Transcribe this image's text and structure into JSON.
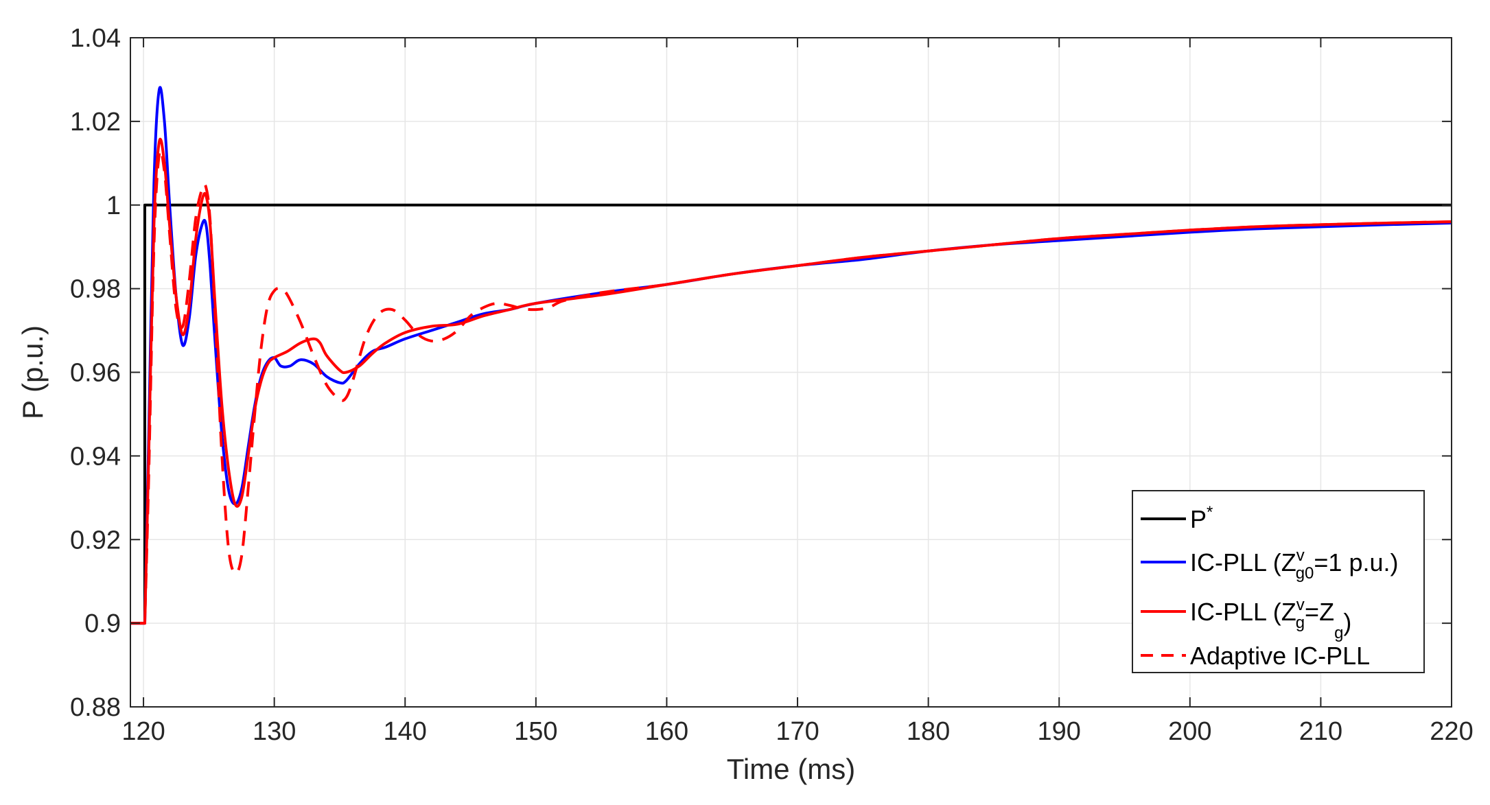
{
  "chart_data": {
    "type": "line",
    "title": "",
    "xlabel": "Time (ms)",
    "ylabel": "P (p.u.)",
    "xlim": [
      119,
      220
    ],
    "ylim": [
      0.88,
      1.04
    ],
    "x_ticks": [
      120,
      130,
      140,
      150,
      160,
      170,
      180,
      190,
      200,
      210,
      220
    ],
    "y_ticks": [
      0.88,
      0.9,
      0.92,
      0.94,
      0.96,
      0.98,
      1,
      1.02,
      1.04
    ],
    "x_tick_labels": [
      "120",
      "130",
      "140",
      "150",
      "160",
      "170",
      "180",
      "190",
      "200",
      "210",
      "220"
    ],
    "y_tick_labels": [
      "0.88",
      "0.9",
      "0.92",
      "0.94",
      "0.96",
      "0.98",
      "1",
      "1.02",
      "1.04"
    ],
    "grid": true,
    "legend_position": "bottom-right",
    "series": [
      {
        "name": "P*",
        "legend": {
          "main": "P",
          "sup": "*"
        },
        "color": "#000000",
        "dash": "solid",
        "x": [
          119,
          120.1,
          120.1,
          220
        ],
        "y": [
          0.9,
          0.9,
          1.0,
          1.0
        ]
      },
      {
        "name": "IC-PLL (Zvg0=1 p.u.)",
        "legend": {
          "pre": "IC-PLL (Z",
          "sup": "v",
          "sub": "g0",
          "post": "=1 p.u.)"
        },
        "color": "#0000ff",
        "dash": "solid",
        "x": [
          119,
          120.1,
          120.4,
          120.8,
          121.2,
          121.6,
          122.0,
          122.5,
          123.0,
          123.5,
          124.0,
          124.5,
          124.8,
          125.1,
          125.5,
          126.0,
          126.5,
          127.0,
          127.5,
          128.0,
          128.5,
          129.0,
          129.5,
          130.0,
          130.5,
          131.2,
          132.0,
          133.0,
          134.0,
          135.0,
          135.5,
          136.5,
          137.5,
          138.5,
          140.0,
          142.0,
          144.0,
          146.0,
          148.0,
          150.0,
          155.0,
          160.0,
          165.0,
          170.0,
          175.0,
          180.0,
          185.0,
          190.0,
          195.0,
          200.0,
          205.0,
          210.0,
          215.0,
          220.0
        ],
        "y": [
          0.9,
          0.9,
          0.945,
          1.005,
          1.0275,
          1.02,
          1.0,
          0.978,
          0.9665,
          0.973,
          0.988,
          0.9955,
          0.995,
          0.985,
          0.966,
          0.945,
          0.932,
          0.9285,
          0.932,
          0.942,
          0.952,
          0.959,
          0.9625,
          0.9635,
          0.9615,
          0.9615,
          0.963,
          0.962,
          0.959,
          0.9575,
          0.958,
          0.962,
          0.965,
          0.966,
          0.968,
          0.97,
          0.972,
          0.974,
          0.975,
          0.9765,
          0.979,
          0.981,
          0.9835,
          0.9855,
          0.987,
          0.989,
          0.9905,
          0.9915,
          0.9925,
          0.9935,
          0.9943,
          0.9948,
          0.9953,
          0.9957
        ]
      },
      {
        "name": "IC-PLL (Zvg=Zg)",
        "legend": {
          "pre": "IC-PLL (Z",
          "sup": "v",
          "sub": "g",
          "post": "=Z",
          "sub2": "g",
          "post2": ")"
        },
        "color": "#ff0000",
        "dash": "solid",
        "x": [
          119,
          120.1,
          120.4,
          120.8,
          121.2,
          121.6,
          122.0,
          122.5,
          123.0,
          123.5,
          124.0,
          124.5,
          124.8,
          125.1,
          125.5,
          126.0,
          126.5,
          127.0,
          127.5,
          128.0,
          128.5,
          129.0,
          129.5,
          130.0,
          131.0,
          132.0,
          133.0,
          133.5,
          134.0,
          135.0,
          135.5,
          136.5,
          137.5,
          138.5,
          140.0,
          142.0,
          144.0,
          146.0,
          148.0,
          150.0,
          155.0,
          160.0,
          165.0,
          170.0,
          175.0,
          180.0,
          185.0,
          190.0,
          195.0,
          200.0,
          205.0,
          210.0,
          215.0,
          220.0
        ],
        "y": [
          0.9,
          0.9,
          0.94,
          0.995,
          1.015,
          1.01,
          0.995,
          0.978,
          0.969,
          0.976,
          0.992,
          1.0015,
          1.002,
          0.995,
          0.975,
          0.952,
          0.937,
          0.9285,
          0.93,
          0.94,
          0.951,
          0.958,
          0.962,
          0.9635,
          0.965,
          0.967,
          0.968,
          0.967,
          0.964,
          0.9605,
          0.96,
          0.9615,
          0.9645,
          0.967,
          0.9695,
          0.971,
          0.9715,
          0.9735,
          0.975,
          0.9765,
          0.9785,
          0.981,
          0.9835,
          0.9855,
          0.9875,
          0.989,
          0.9905,
          0.992,
          0.993,
          0.994,
          0.9948,
          0.9953,
          0.9957,
          0.996
        ]
      },
      {
        "name": "Adaptive IC-PLL",
        "legend": {
          "pre": "Adaptive IC-PLL"
        },
        "color": "#ff0000",
        "dash": "dashed",
        "x": [
          119,
          120.1,
          120.4,
          120.8,
          121.2,
          121.6,
          122.0,
          122.5,
          123.0,
          123.5,
          124.0,
          124.5,
          124.8,
          125.1,
          125.5,
          126.0,
          126.5,
          127.0,
          127.5,
          128.0,
          128.5,
          129.0,
          129.5,
          130.0,
          130.5,
          131.0,
          132.0,
          133.0,
          134.0,
          135.0,
          135.5,
          136.0,
          137.0,
          138.0,
          139.0,
          140.0,
          141.0,
          142.0,
          143.0,
          144.0,
          145.0,
          146.0,
          147.0,
          148.0,
          149.0,
          150.0,
          151.0,
          152.0,
          154.0,
          156.0,
          160.0,
          165.0,
          170.0,
          175.0,
          180.0,
          185.0,
          190.0,
          195.0,
          200.0,
          205.0,
          210.0,
          215.0,
          220.0
        ],
        "y": [
          0.9,
          0.9,
          0.935,
          0.99,
          1.012,
          1.008,
          0.993,
          0.975,
          0.971,
          0.982,
          0.997,
          1.004,
          1.004,
          0.996,
          0.972,
          0.94,
          0.918,
          0.912,
          0.916,
          0.932,
          0.95,
          0.966,
          0.976,
          0.9795,
          0.98,
          0.9785,
          0.972,
          0.964,
          0.957,
          0.9535,
          0.954,
          0.958,
          0.9685,
          0.974,
          0.975,
          0.9725,
          0.969,
          0.9675,
          0.968,
          0.97,
          0.9735,
          0.9755,
          0.9765,
          0.976,
          0.9752,
          0.975,
          0.9755,
          0.977,
          0.9785,
          0.9795,
          0.981,
          0.9835,
          0.9855,
          0.9875,
          0.989,
          0.9905,
          0.992,
          0.993,
          0.994,
          0.9948,
          0.9953,
          0.9957,
          0.996
        ]
      }
    ]
  }
}
